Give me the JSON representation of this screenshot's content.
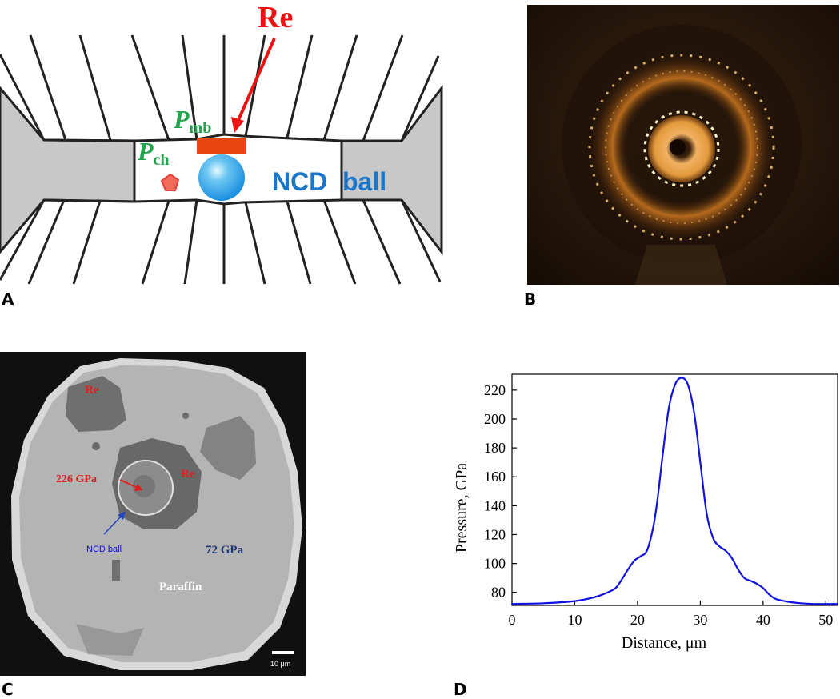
{
  "panel_a": {
    "letter": "A",
    "re_label": "Re",
    "p_mb_main": "P",
    "p_mb_sub": "mb",
    "p_ch_main": "P",
    "p_ch_sub": "ch",
    "ncd_label": "NCD",
    "ball_label": "ball",
    "colors": {
      "red": "#ee1111",
      "green": "#22a24a",
      "blue": "#1b75c9",
      "gasket": "#c8c8c8",
      "re_bar": "#e8460e"
    }
  },
  "panel_b": {
    "letter": "B"
  },
  "panel_c": {
    "letter": "C",
    "re_label_1": "Re",
    "re_label_2": "Re",
    "pressure_center": "226 GPa",
    "ncd_ball": "NCD ball",
    "pressure_outer": "72 GPa",
    "paraffin": "Paraffin",
    "scale_bar": "10 μm"
  },
  "panel_d": {
    "letter": "D"
  },
  "chart_data": {
    "type": "line",
    "xlabel": "Distance, μm",
    "ylabel": "Pressure, GPa",
    "xlim": [
      0,
      52
    ],
    "ylim": [
      71,
      231
    ],
    "xticks": [
      0,
      10,
      20,
      30,
      40,
      50
    ],
    "yticks": [
      80,
      100,
      120,
      140,
      160,
      180,
      200,
      220
    ],
    "grid": false,
    "series": [
      {
        "color": "#1010e0",
        "x": [
          0,
          5,
          10,
          13,
          15,
          16.5,
          17.5,
          18.5,
          19.5,
          20.5,
          21.5,
          22.5,
          23.2,
          24,
          25,
          26,
          27,
          28,
          29,
          30,
          31,
          32,
          33,
          34,
          35,
          36,
          37,
          38,
          39,
          40,
          41,
          42,
          44,
          46,
          48,
          50,
          52
        ],
        "y": [
          72,
          72.5,
          74,
          76.5,
          79.5,
          83,
          89,
          96,
          102,
          105,
          109,
          125,
          145,
          175,
          208,
          224,
          228.5,
          224,
          205,
          170,
          135,
          118,
          112,
          109,
          104,
          96,
          90,
          88,
          86,
          83,
          78.5,
          75.5,
          73.5,
          72.5,
          72,
          72,
          72
        ]
      }
    ]
  }
}
